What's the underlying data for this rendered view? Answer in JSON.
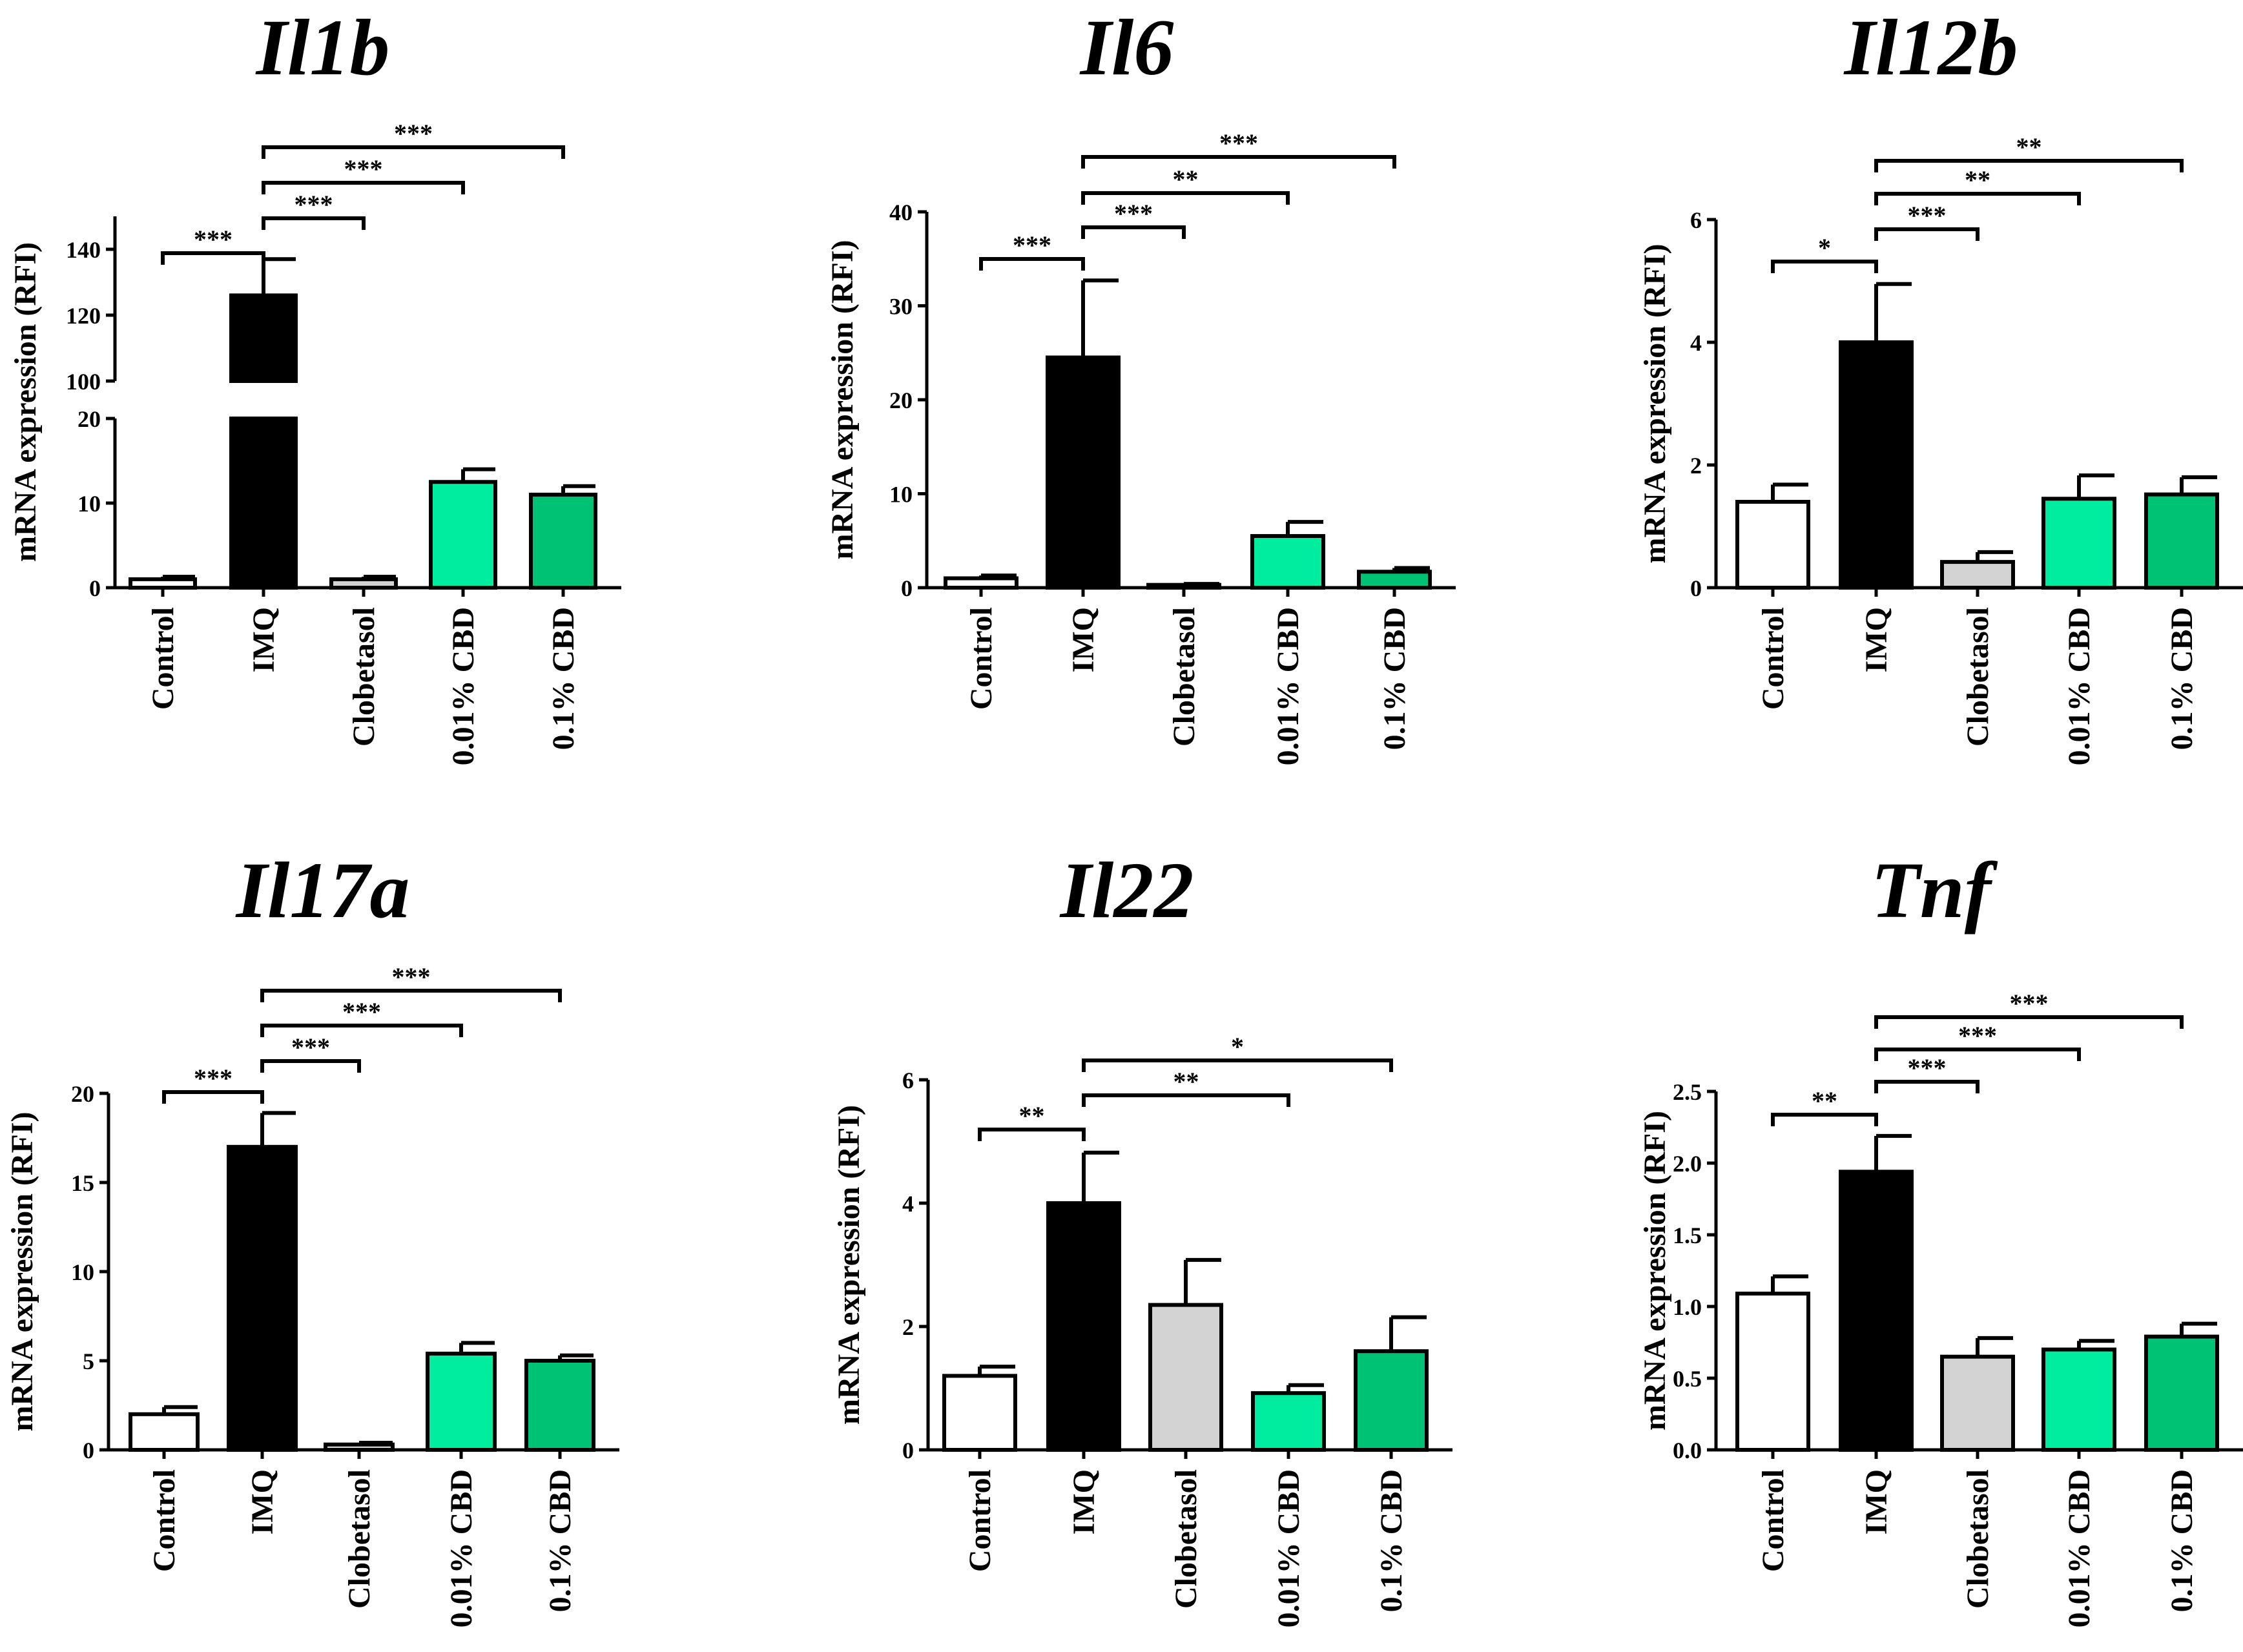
{
  "figure": {
    "ylabel": "mRNA expression (RFI)",
    "colors": {
      "Control": "#ffffff",
      "IMQ": "#000000",
      "Clobetasol": "#d3d3d3",
      "0.01% CBD": "#00ed9f",
      "0.1% CBD": "#00c274"
    }
  },
  "chart_data": [
    {
      "type": "bar",
      "title": "Il1b",
      "ylabel": "mRNA expression (RFI)",
      "categories": [
        "Control",
        "IMQ",
        "Clobetasol",
        "0.01% CBD",
        "0.1% CBD"
      ],
      "values": [
        1,
        126,
        1,
        12.5,
        11
      ],
      "errors": [
        0.3,
        11,
        0.3,
        1.5,
        1
      ],
      "axis_break": true,
      "lower_ylim": [
        0,
        20
      ],
      "lower_yticks": [
        0,
        10,
        20
      ],
      "upper_ylim": [
        100,
        150
      ],
      "upper_yticks": [
        100,
        120,
        140
      ],
      "significance": [
        {
          "from": "Control",
          "to": "IMQ",
          "label": "***"
        },
        {
          "from": "IMQ",
          "to": "Clobetasol",
          "label": "***"
        },
        {
          "from": "IMQ",
          "to": "0.01% CBD",
          "label": "***"
        },
        {
          "from": "IMQ",
          "to": "0.1% CBD",
          "label": "***"
        }
      ]
    },
    {
      "type": "bar",
      "title": "Il6",
      "ylabel": "mRNA expression (RFI)",
      "categories": [
        "Control",
        "IMQ",
        "Clobetasol",
        "0.01% CBD",
        "0.1% CBD"
      ],
      "values": [
        1,
        24.5,
        0.3,
        5.5,
        1.7
      ],
      "errors": [
        0.3,
        8.2,
        0.1,
        1.5,
        0.4
      ],
      "ylim": [
        0,
        40
      ],
      "yticks": [
        0,
        10,
        20,
        30,
        40
      ],
      "significance": [
        {
          "from": "Control",
          "to": "IMQ",
          "label": "***"
        },
        {
          "from": "IMQ",
          "to": "Clobetasol",
          "label": "***"
        },
        {
          "from": "IMQ",
          "to": "0.01% CBD",
          "label": "**"
        },
        {
          "from": "IMQ",
          "to": "0.1% CBD",
          "label": "***"
        }
      ]
    },
    {
      "type": "bar",
      "title": "Il12b",
      "ylabel": "mRNA expression (RFI)",
      "categories": [
        "Control",
        "IMQ",
        "Clobetasol",
        "0.01% CBD",
        "0.1% CBD"
      ],
      "values": [
        1.4,
        4.0,
        0.42,
        1.45,
        1.52
      ],
      "errors": [
        0.28,
        0.95,
        0.16,
        0.38,
        0.28
      ],
      "ylim": [
        0,
        6
      ],
      "yticks": [
        0,
        2,
        4,
        6
      ],
      "significance": [
        {
          "from": "Control",
          "to": "IMQ",
          "label": "*"
        },
        {
          "from": "IMQ",
          "to": "Clobetasol",
          "label": "***"
        },
        {
          "from": "IMQ",
          "to": "0.01% CBD",
          "label": "**"
        },
        {
          "from": "IMQ",
          "to": "0.1% CBD",
          "label": "**"
        }
      ]
    },
    {
      "type": "bar",
      "title": "Il17a",
      "ylabel": "mRNA expression (RFI)",
      "categories": [
        "Control",
        "IMQ",
        "Clobetasol",
        "0.01% CBD",
        "0.1% CBD"
      ],
      "values": [
        2,
        17,
        0.3,
        5.4,
        5.0
      ],
      "errors": [
        0.4,
        1.9,
        0.1,
        0.6,
        0.3
      ],
      "ylim": [
        0,
        20
      ],
      "yticks": [
        0,
        5,
        10,
        15,
        20
      ],
      "significance": [
        {
          "from": "Control",
          "to": "IMQ",
          "label": "***"
        },
        {
          "from": "IMQ",
          "to": "Clobetasol",
          "label": "***"
        },
        {
          "from": "IMQ",
          "to": "0.01% CBD",
          "label": "***"
        },
        {
          "from": "IMQ",
          "to": "0.1% CBD",
          "label": "***"
        }
      ]
    },
    {
      "type": "bar",
      "title": "Il22",
      "ylabel": "mRNA expression (RFI)",
      "categories": [
        "Control",
        "IMQ",
        "Clobetasol",
        "0.01% CBD",
        "0.1% CBD"
      ],
      "values": [
        1.2,
        4.0,
        2.35,
        0.92,
        1.6
      ],
      "errors": [
        0.15,
        0.82,
        0.73,
        0.13,
        0.55
      ],
      "ylim": [
        0,
        6
      ],
      "yticks": [
        0,
        2,
        4,
        6
      ],
      "significance": [
        {
          "from": "Control",
          "to": "IMQ",
          "label": "**"
        },
        {
          "from": "IMQ",
          "to": "0.01% CBD",
          "label": "**"
        },
        {
          "from": "IMQ",
          "to": "0.1% CBD",
          "label": "*"
        }
      ]
    },
    {
      "type": "bar",
      "title": "Tnf",
      "ylabel": "mRNA expression (RFI)",
      "categories": [
        "Control",
        "IMQ",
        "Clobetasol",
        "0.01% CBD",
        "0.1% CBD"
      ],
      "values": [
        1.09,
        1.94,
        0.65,
        0.7,
        0.79
      ],
      "errors": [
        0.12,
        0.25,
        0.13,
        0.06,
        0.09
      ],
      "ylim": [
        0,
        2.5
      ],
      "yticks": [
        "0.0",
        "0.5",
        "1.0",
        "1.5",
        "2.0",
        "2.5"
      ],
      "significance": [
        {
          "from": "Control",
          "to": "IMQ",
          "label": "**"
        },
        {
          "from": "IMQ",
          "to": "Clobetasol",
          "label": "***"
        },
        {
          "from": "IMQ",
          "to": "0.01% CBD",
          "label": "***"
        },
        {
          "from": "IMQ",
          "to": "0.1% CBD",
          "label": "***"
        }
      ]
    }
  ]
}
